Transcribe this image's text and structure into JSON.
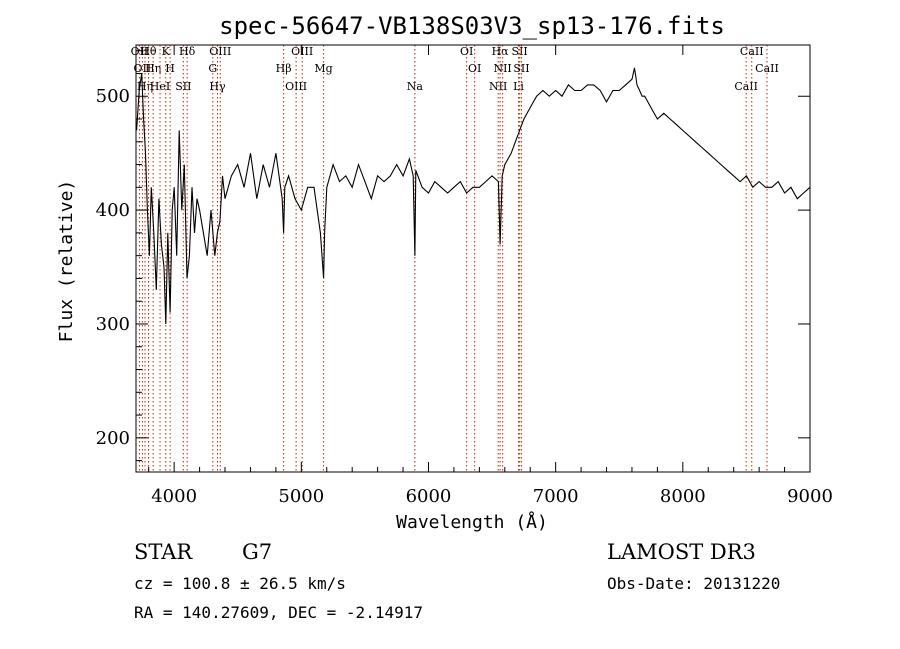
{
  "chart_data": {
    "type": "line",
    "title": "spec-56647-VB138S03V3_sp13-176.fits",
    "xlabel": "Wavelength (Å)",
    "ylabel": "Flux (relative)",
    "xlim": [
      3700,
      9000
    ],
    "ylim": [
      170,
      545
    ],
    "xticks": [
      4000,
      5000,
      6000,
      7000,
      8000,
      9000
    ],
    "yticks": [
      200,
      300,
      400,
      500
    ],
    "xtick_labels": [
      "4000",
      "5000",
      "6000",
      "7000",
      "8000",
      "9000"
    ],
    "ytick_labels": [
      "200",
      "300",
      "400",
      "500"
    ],
    "line_color": "#000000",
    "marker_color": "#cc2200",
    "series": [
      {
        "name": "flux",
        "x": [
          3705,
          3725,
          3745,
          3760,
          3775,
          3790,
          3805,
          3820,
          3840,
          3860,
          3880,
          3900,
          3920,
          3934,
          3950,
          3968,
          3985,
          4000,
          4020,
          4040,
          4060,
          4080,
          4101,
          4120,
          4140,
          4160,
          4180,
          4200,
          4230,
          4260,
          4290,
          4320,
          4340,
          4360,
          4380,
          4400,
          4450,
          4500,
          4550,
          4600,
          4650,
          4700,
          4750,
          4800,
          4850,
          4861,
          4870,
          4900,
          4950,
          5000,
          5050,
          5100,
          5150,
          5175,
          5183,
          5200,
          5250,
          5300,
          5350,
          5400,
          5450,
          5500,
          5550,
          5600,
          5650,
          5700,
          5750,
          5800,
          5850,
          5880,
          5893,
          5900,
          5950,
          6000,
          6050,
          6100,
          6150,
          6200,
          6250,
          6300,
          6350,
          6400,
          6450,
          6500,
          6550,
          6563,
          6580,
          6600,
          6650,
          6700,
          6750,
          6800,
          6850,
          6900,
          6950,
          7000,
          7050,
          7100,
          7150,
          7200,
          7250,
          7300,
          7350,
          7400,
          7450,
          7500,
          7550,
          7600,
          7620,
          7640,
          7660,
          7680,
          7700,
          7750,
          7800,
          7850,
          7900,
          7950,
          8000,
          8050,
          8100,
          8150,
          8200,
          8250,
          8300,
          8350,
          8400,
          8450,
          8500,
          8550,
          8600,
          8650,
          8700,
          8750,
          8800,
          8850,
          8900,
          8950,
          9000
        ],
        "values": [
          470,
          505,
          520,
          480,
          450,
          400,
          360,
          420,
          380,
          330,
          410,
          370,
          350,
          300,
          380,
          310,
          400,
          420,
          360,
          470,
          400,
          440,
          340,
          360,
          420,
          380,
          410,
          400,
          380,
          360,
          400,
          360,
          380,
          390,
          430,
          410,
          430,
          440,
          420,
          450,
          410,
          440,
          420,
          450,
          410,
          380,
          420,
          430,
          410,
          400,
          420,
          420,
          380,
          340,
          380,
          420,
          440,
          425,
          430,
          420,
          440,
          425,
          410,
          430,
          425,
          430,
          440,
          430,
          445,
          430,
          360,
          435,
          420,
          415,
          425,
          420,
          415,
          420,
          425,
          415,
          420,
          420,
          425,
          430,
          425,
          370,
          430,
          440,
          450,
          465,
          480,
          490,
          500,
          505,
          500,
          505,
          500,
          510,
          505,
          505,
          510,
          510,
          505,
          495,
          505,
          505,
          510,
          515,
          525,
          510,
          505,
          500,
          500,
          490,
          480,
          485,
          480,
          475,
          470,
          465,
          460,
          455,
          450,
          445,
          440,
          435,
          430,
          425,
          430,
          420,
          425,
          420,
          420,
          425,
          415,
          420,
          410,
          415,
          420
        ]
      }
    ],
    "line_markers": [
      {
        "wave": 3727,
        "label": "OII"
      },
      {
        "wave": 3750,
        "label": "OII"
      },
      {
        "wave": 3771,
        "label": "Hη"
      },
      {
        "wave": 3798,
        "label": "Hθ"
      },
      {
        "wave": 3835,
        "label": "Hη"
      },
      {
        "wave": 3889,
        "label": "HeI"
      },
      {
        "wave": 3934,
        "label": "K"
      },
      {
        "wave": 3968,
        "label": "H"
      },
      {
        "wave": 4072,
        "label": "SII"
      },
      {
        "wave": 4102,
        "label": "Hδ"
      },
      {
        "wave": 4304,
        "label": "G"
      },
      {
        "wave": 4341,
        "label": "Hγ"
      },
      {
        "wave": 4363,
        "label": "OIII"
      },
      {
        "wave": 4861,
        "label": "Hβ"
      },
      {
        "wave": 4959,
        "label": "OIII"
      },
      {
        "wave": 5007,
        "label": "OIII"
      },
      {
        "wave": 5175,
        "label": "Mg"
      },
      {
        "wave": 5893,
        "label": "Na"
      },
      {
        "wave": 6300,
        "label": "OI"
      },
      {
        "wave": 6363,
        "label": "OI"
      },
      {
        "wave": 6548,
        "label": "NII"
      },
      {
        "wave": 6563,
        "label": "Hα"
      },
      {
        "wave": 6583,
        "label": "NII"
      },
      {
        "wave": 6708,
        "label": "Li"
      },
      {
        "wave": 6717,
        "label": "SII"
      },
      {
        "wave": 6731,
        "label": "SII"
      },
      {
        "wave": 8498,
        "label": "CaII"
      },
      {
        "wave": 8542,
        "label": "CaII"
      },
      {
        "wave": 8662,
        "label": "CaII"
      }
    ]
  },
  "footer": {
    "obj_class": "STAR",
    "obj_subclass": "G7",
    "survey": "LAMOST DR3",
    "cz_line": "cz = 100.8 ± 26.5 km/s",
    "obs_date_line": "Obs-Date: 20131220",
    "radec_line": "RA = 140.27609, DEC =  -2.14917"
  }
}
